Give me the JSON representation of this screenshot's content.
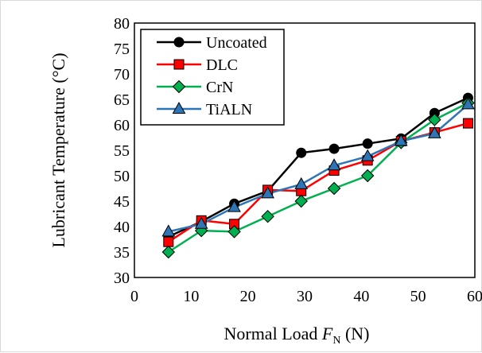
{
  "chart_data": {
    "type": "line",
    "x": [
      6,
      11.8,
      17.6,
      23.5,
      29.4,
      35.2,
      41.1,
      47,
      52.9,
      58.8
    ],
    "series": [
      {
        "name": "Uncoated",
        "color": "#000000",
        "marker": "circle",
        "values": [
          38,
          41,
          44.5,
          47,
          54.5,
          55.3,
          56.3,
          57.3,
          62.3,
          65.3
        ]
      },
      {
        "name": "DLC",
        "color": "#ff0000",
        "marker": "square",
        "values": [
          37,
          41.2,
          40.5,
          47.2,
          47,
          51,
          53,
          56.8,
          58.5,
          60.3
        ]
      },
      {
        "name": "CrN",
        "color": "#00b050",
        "marker": "diamond",
        "values": [
          35,
          39.2,
          39,
          42,
          45,
          47.5,
          50,
          56.5,
          61,
          64.3
        ]
      },
      {
        "name": "TiALN",
        "color": "#2e75b6",
        "marker": "triangle",
        "values": [
          39,
          40.5,
          43.8,
          46.5,
          48.3,
          52,
          53.8,
          56.8,
          58.3,
          64
        ]
      }
    ],
    "xlabel": {
      "main": "Normal Load ",
      "var": "F",
      "sub": "N",
      "unit": " (N)"
    },
    "ylabel": "Lubricant Temperature (°C)",
    "xlim": [
      0,
      60
    ],
    "ylim": [
      30,
      80
    ],
    "xticks": [
      "0",
      "10",
      "20",
      "30",
      "40",
      "50",
      "60"
    ],
    "yticks": [
      "30",
      "35",
      "40",
      "45",
      "50",
      "55",
      "60",
      "65",
      "70",
      "75",
      "80"
    ],
    "grid": false,
    "legend_position": "top-left"
  }
}
